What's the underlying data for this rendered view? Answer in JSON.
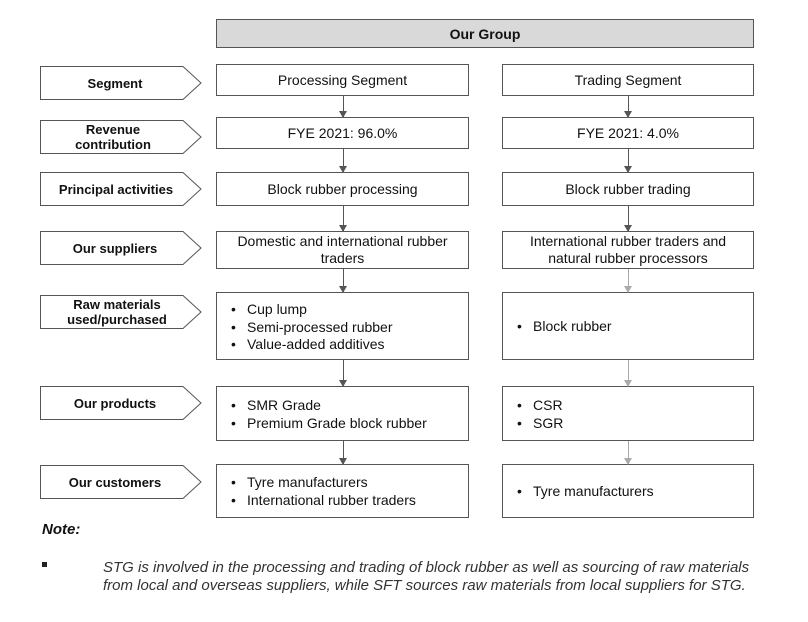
{
  "group_title": "Our Group",
  "rows": [
    {
      "label": "Segment",
      "processing": "Processing Segment",
      "trading": "Trading Segment"
    },
    {
      "label": "Revenue contribution",
      "processing": "FYE 2021: 96.0%",
      "trading": "FYE 2021: 4.0%"
    },
    {
      "label": "Principal activities",
      "processing": "Block rubber processing",
      "trading": "Block rubber trading"
    },
    {
      "label": "Our suppliers",
      "processing": "Domestic and international rubber traders",
      "trading": "International rubber traders and natural rubber processors"
    },
    {
      "label": "Raw materials used/purchased",
      "processing": [
        "Cup lump",
        "Semi-processed rubber",
        "Value-added additives"
      ],
      "trading": [
        "Block rubber"
      ]
    },
    {
      "label": "Our products",
      "processing": [
        "SMR Grade",
        "Premium Grade block rubber"
      ],
      "trading": [
        "CSR",
        "SGR"
      ]
    },
    {
      "label": "Our customers",
      "processing": [
        "Tyre manufacturers",
        "International rubber traders"
      ],
      "trading": [
        "Tyre manufacturers"
      ]
    }
  ],
  "note": {
    "title": "Note:",
    "text": "STG is involved in the processing and trading of block rubber as well as sourcing of raw materials from local and overseas suppliers, while SFT sources raw materials from local suppliers for STG."
  },
  "colors": {
    "header_fill": "#d9d9d9",
    "border": "#555555",
    "arrow_light": "#aaaaaa"
  }
}
